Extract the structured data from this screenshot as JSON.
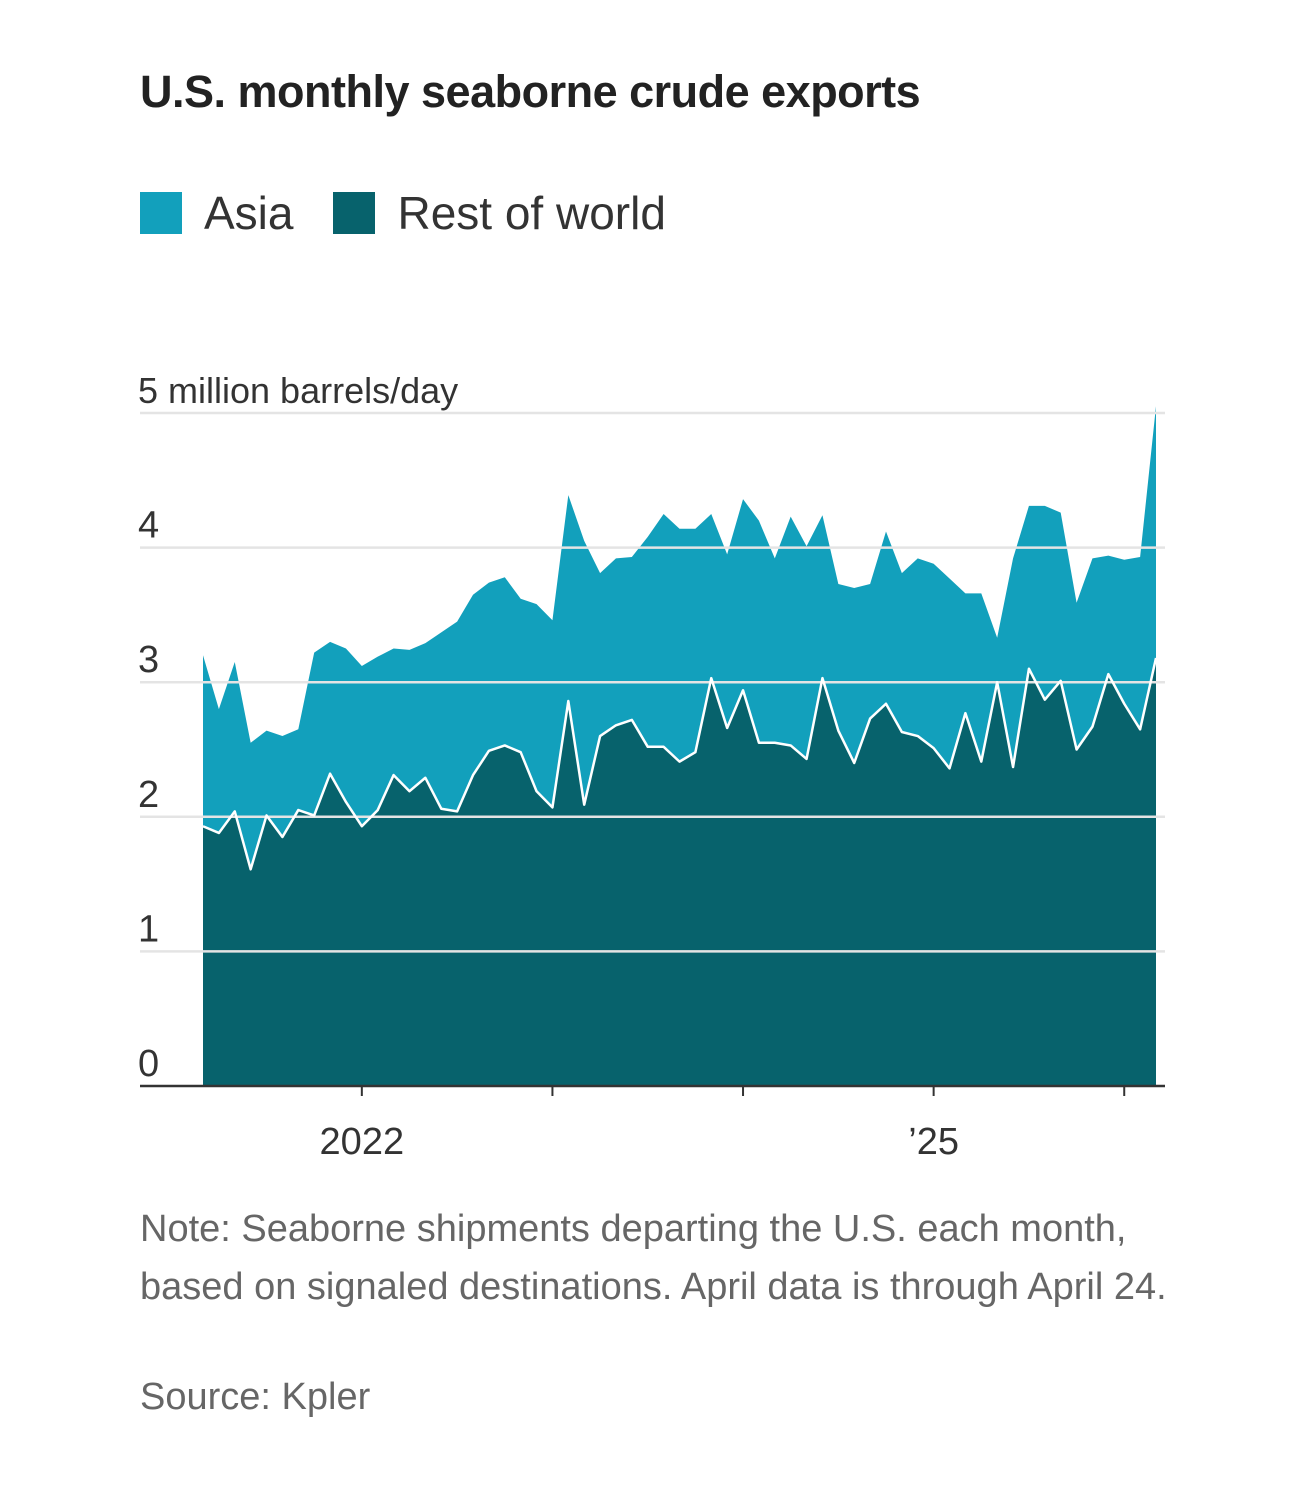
{
  "title": "U.S. monthly seaborne crude exports",
  "legend": [
    {
      "label": "Asia",
      "color": "#12A0BC"
    },
    {
      "label": "Rest of world",
      "color": "#07626C"
    }
  ],
  "note": "Note: Seaborne shipments departing the U.S. each month, based on signaled destinations. April data is through April 24.",
  "source": "Source: Kpler",
  "chart_data": {
    "type": "area",
    "stacked": true,
    "unit_label": "5 million barrels/day",
    "y_ticks": [
      "0",
      "1",
      "2",
      "3",
      "4"
    ],
    "ylim": [
      0,
      5
    ],
    "x_tick_labels": [
      {
        "label": "2022",
        "month_index": 13
      },
      {
        "label": "’25",
        "month_index": 49
      }
    ],
    "x_minor_tick_month_indices": [
      13,
      25,
      37,
      49,
      61
    ],
    "x_range_month_index": [
      3,
      63
    ],
    "x_start": "2021-04",
    "x_end": "2026-04",
    "grid": true,
    "legend_position": "top-left",
    "x": [
      "2021-04",
      "2021-05",
      "2021-06",
      "2021-07",
      "2021-08",
      "2021-09",
      "2021-10",
      "2021-11",
      "2021-12",
      "2022-01",
      "2022-02",
      "2022-03",
      "2022-04",
      "2022-05",
      "2022-06",
      "2022-07",
      "2022-08",
      "2022-09",
      "2022-10",
      "2022-11",
      "2022-12",
      "2023-01",
      "2023-02",
      "2023-03",
      "2023-04",
      "2023-05",
      "2023-06",
      "2023-07",
      "2023-08",
      "2023-09",
      "2023-10",
      "2023-11",
      "2023-12",
      "2024-01",
      "2024-02",
      "2024-03",
      "2024-04",
      "2024-05",
      "2024-06",
      "2024-07",
      "2024-08",
      "2024-09",
      "2024-10",
      "2024-11",
      "2024-12",
      "2025-01",
      "2025-02",
      "2025-03",
      "2025-04",
      "2025-05",
      "2025-06",
      "2025-07",
      "2025-08",
      "2025-09",
      "2025-10",
      "2025-11",
      "2025-12",
      "2026-01",
      "2026-02",
      "2026-03",
      "2026-04"
    ],
    "series": [
      {
        "name": "Rest of world",
        "color": "#07626C",
        "values": [
          1.93,
          1.88,
          2.04,
          1.61,
          2.01,
          1.85,
          2.05,
          2.01,
          2.32,
          2.11,
          1.93,
          2.05,
          2.31,
          2.19,
          2.29,
          2.06,
          2.04,
          2.31,
          2.49,
          2.53,
          2.48,
          2.19,
          2.07,
          2.86,
          2.09,
          2.6,
          2.68,
          2.72,
          2.52,
          2.52,
          2.41,
          2.48,
          3.03,
          2.66,
          2.94,
          2.55,
          2.55,
          2.53,
          2.43,
          3.03,
          2.64,
          2.4,
          2.73,
          2.84,
          2.63,
          2.6,
          2.51,
          2.36,
          2.77,
          2.41,
          3.0,
          2.37,
          3.1,
          2.87,
          3.01,
          2.5,
          2.67,
          3.06,
          2.84,
          2.65,
          3.18
        ]
      },
      {
        "name": "Asia",
        "color": "#12A0BC",
        "values": [
          1.27,
          0.92,
          1.11,
          0.94,
          0.63,
          0.75,
          0.6,
          1.21,
          0.98,
          1.14,
          1.19,
          1.14,
          0.94,
          1.05,
          1.0,
          1.31,
          1.41,
          1.34,
          1.25,
          1.25,
          1.14,
          1.39,
          1.39,
          1.53,
          1.96,
          1.21,
          1.24,
          1.21,
          1.56,
          1.73,
          1.73,
          1.66,
          1.22,
          1.29,
          1.42,
          1.65,
          1.37,
          1.7,
          1.58,
          1.21,
          1.09,
          1.3,
          1.0,
          1.28,
          1.18,
          1.32,
          1.37,
          1.41,
          0.89,
          1.25,
          0.33,
          1.55,
          1.21,
          1.44,
          1.25,
          1.09,
          1.25,
          0.88,
          1.07,
          1.28,
          1.87
        ]
      }
    ]
  }
}
